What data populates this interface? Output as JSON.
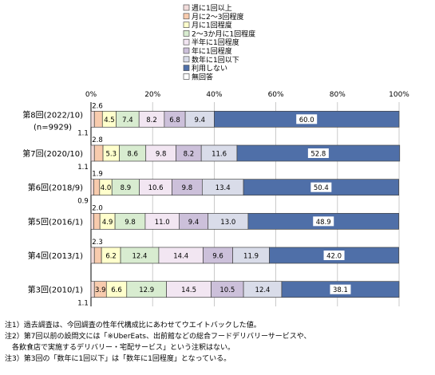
{
  "chart_data": {
    "type": "bar",
    "stacked": true,
    "orientation": "horizontal",
    "unit": "%",
    "x_ticks": [
      "0%",
      "20%",
      "40%",
      "60%",
      "80%",
      "100%"
    ],
    "xlim": [
      0,
      100
    ],
    "grid": true,
    "legend_position": "top",
    "legend": [
      {
        "name": "週に1回以上",
        "color": "#f2dcdb"
      },
      {
        "name": "月に2～3回程度",
        "color": "#f8cbad"
      },
      {
        "name": "月に1回程度",
        "color": "#ffffcc"
      },
      {
        "name": "2～3か月に1回程度",
        "color": "#d8ecd0"
      },
      {
        "name": "半年に1回程度",
        "color": "#f2e6f2"
      },
      {
        "name": "年に1回程度",
        "color": "#ccc0da"
      },
      {
        "name": "数年に1回以下",
        "color": "#d9dce9"
      },
      {
        "name": "利用しない",
        "color": "#4f6fa8"
      },
      {
        "name": "無回答",
        "color": "#ffffff"
      }
    ],
    "categories": [
      {
        "label": "第8回(2022/10)",
        "sublabel": "(n=9929)",
        "values": [
          1.1,
          2.6,
          4.5,
          7.4,
          8.2,
          6.8,
          9.4,
          60.0,
          0
        ],
        "labels": [
          "",
          "",
          "4.5",
          "7.4",
          "8.2",
          "6.8",
          "9.4",
          "60.0",
          ""
        ],
        "above_label": "2.6",
        "below_label": "1.1"
      },
      {
        "label": "第7回(2020/10)",
        "sublabel": "",
        "values": [
          1.1,
          2.8,
          5.3,
          8.6,
          9.8,
          8.2,
          11.6,
          52.8,
          0
        ],
        "labels": [
          "",
          "",
          "5.3",
          "8.6",
          "9.8",
          "8.2",
          "11.6",
          "52.8",
          ""
        ],
        "above_label": "2.8",
        "below_label": "1.1"
      },
      {
        "label": "第6回(2018/9)",
        "sublabel": "",
        "values": [
          0.9,
          1.9,
          4.0,
          8.9,
          10.6,
          9.8,
          13.4,
          50.4,
          0
        ],
        "labels": [
          "",
          "",
          "4.0",
          "8.9",
          "10.6",
          "9.8",
          "13.4",
          "50.4",
          ""
        ],
        "above_label": "1.9",
        "below_label": "0.9"
      },
      {
        "label": "第5回(2016/1)",
        "sublabel": "",
        "values": [
          0.9,
          2.0,
          4.9,
          9.8,
          11.0,
          9.4,
          13.0,
          48.9,
          0
        ],
        "labels": [
          "",
          "",
          "4.9",
          "9.8",
          "11.0",
          "9.4",
          "13.0",
          "48.9",
          ""
        ],
        "above_label": "2.0",
        "below_label": ""
      },
      {
        "label": "第4回(2013/1)",
        "sublabel": "",
        "values": [
          1.1,
          2.3,
          6.2,
          12.4,
          14.4,
          9.6,
          11.9,
          42.0,
          0
        ],
        "labels": [
          "",
          "",
          "6.2",
          "12.4",
          "14.4",
          "9.6",
          "11.9",
          "42.0",
          ""
        ],
        "above_label": "2.3",
        "below_label": ""
      },
      {
        "label": "第3回(2010/1)",
        "sublabel": "",
        "values": [
          1.1,
          3.9,
          6.6,
          12.9,
          14.5,
          10.5,
          12.4,
          38.1,
          0
        ],
        "labels": [
          "",
          "3.9",
          "6.6",
          "12.9",
          "14.5",
          "10.5",
          "12.4",
          "38.1",
          ""
        ],
        "above_label": "",
        "below_label": "1.1"
      }
    ]
  },
  "notes": [
    "注1）過去調査は、今回調査の性年代構成比にあわせてウエイトバックした値。",
    "注2）第7回以前の設問文には「※UberEats、出前館などの総合フードデリバリーサービスや、",
    "　各飲食店で実施するデリバリー・宅配サービス」という注釈はない。",
    "注3）第3回の「数年に1回以下」は「数年に1回程度」となっている。"
  ]
}
